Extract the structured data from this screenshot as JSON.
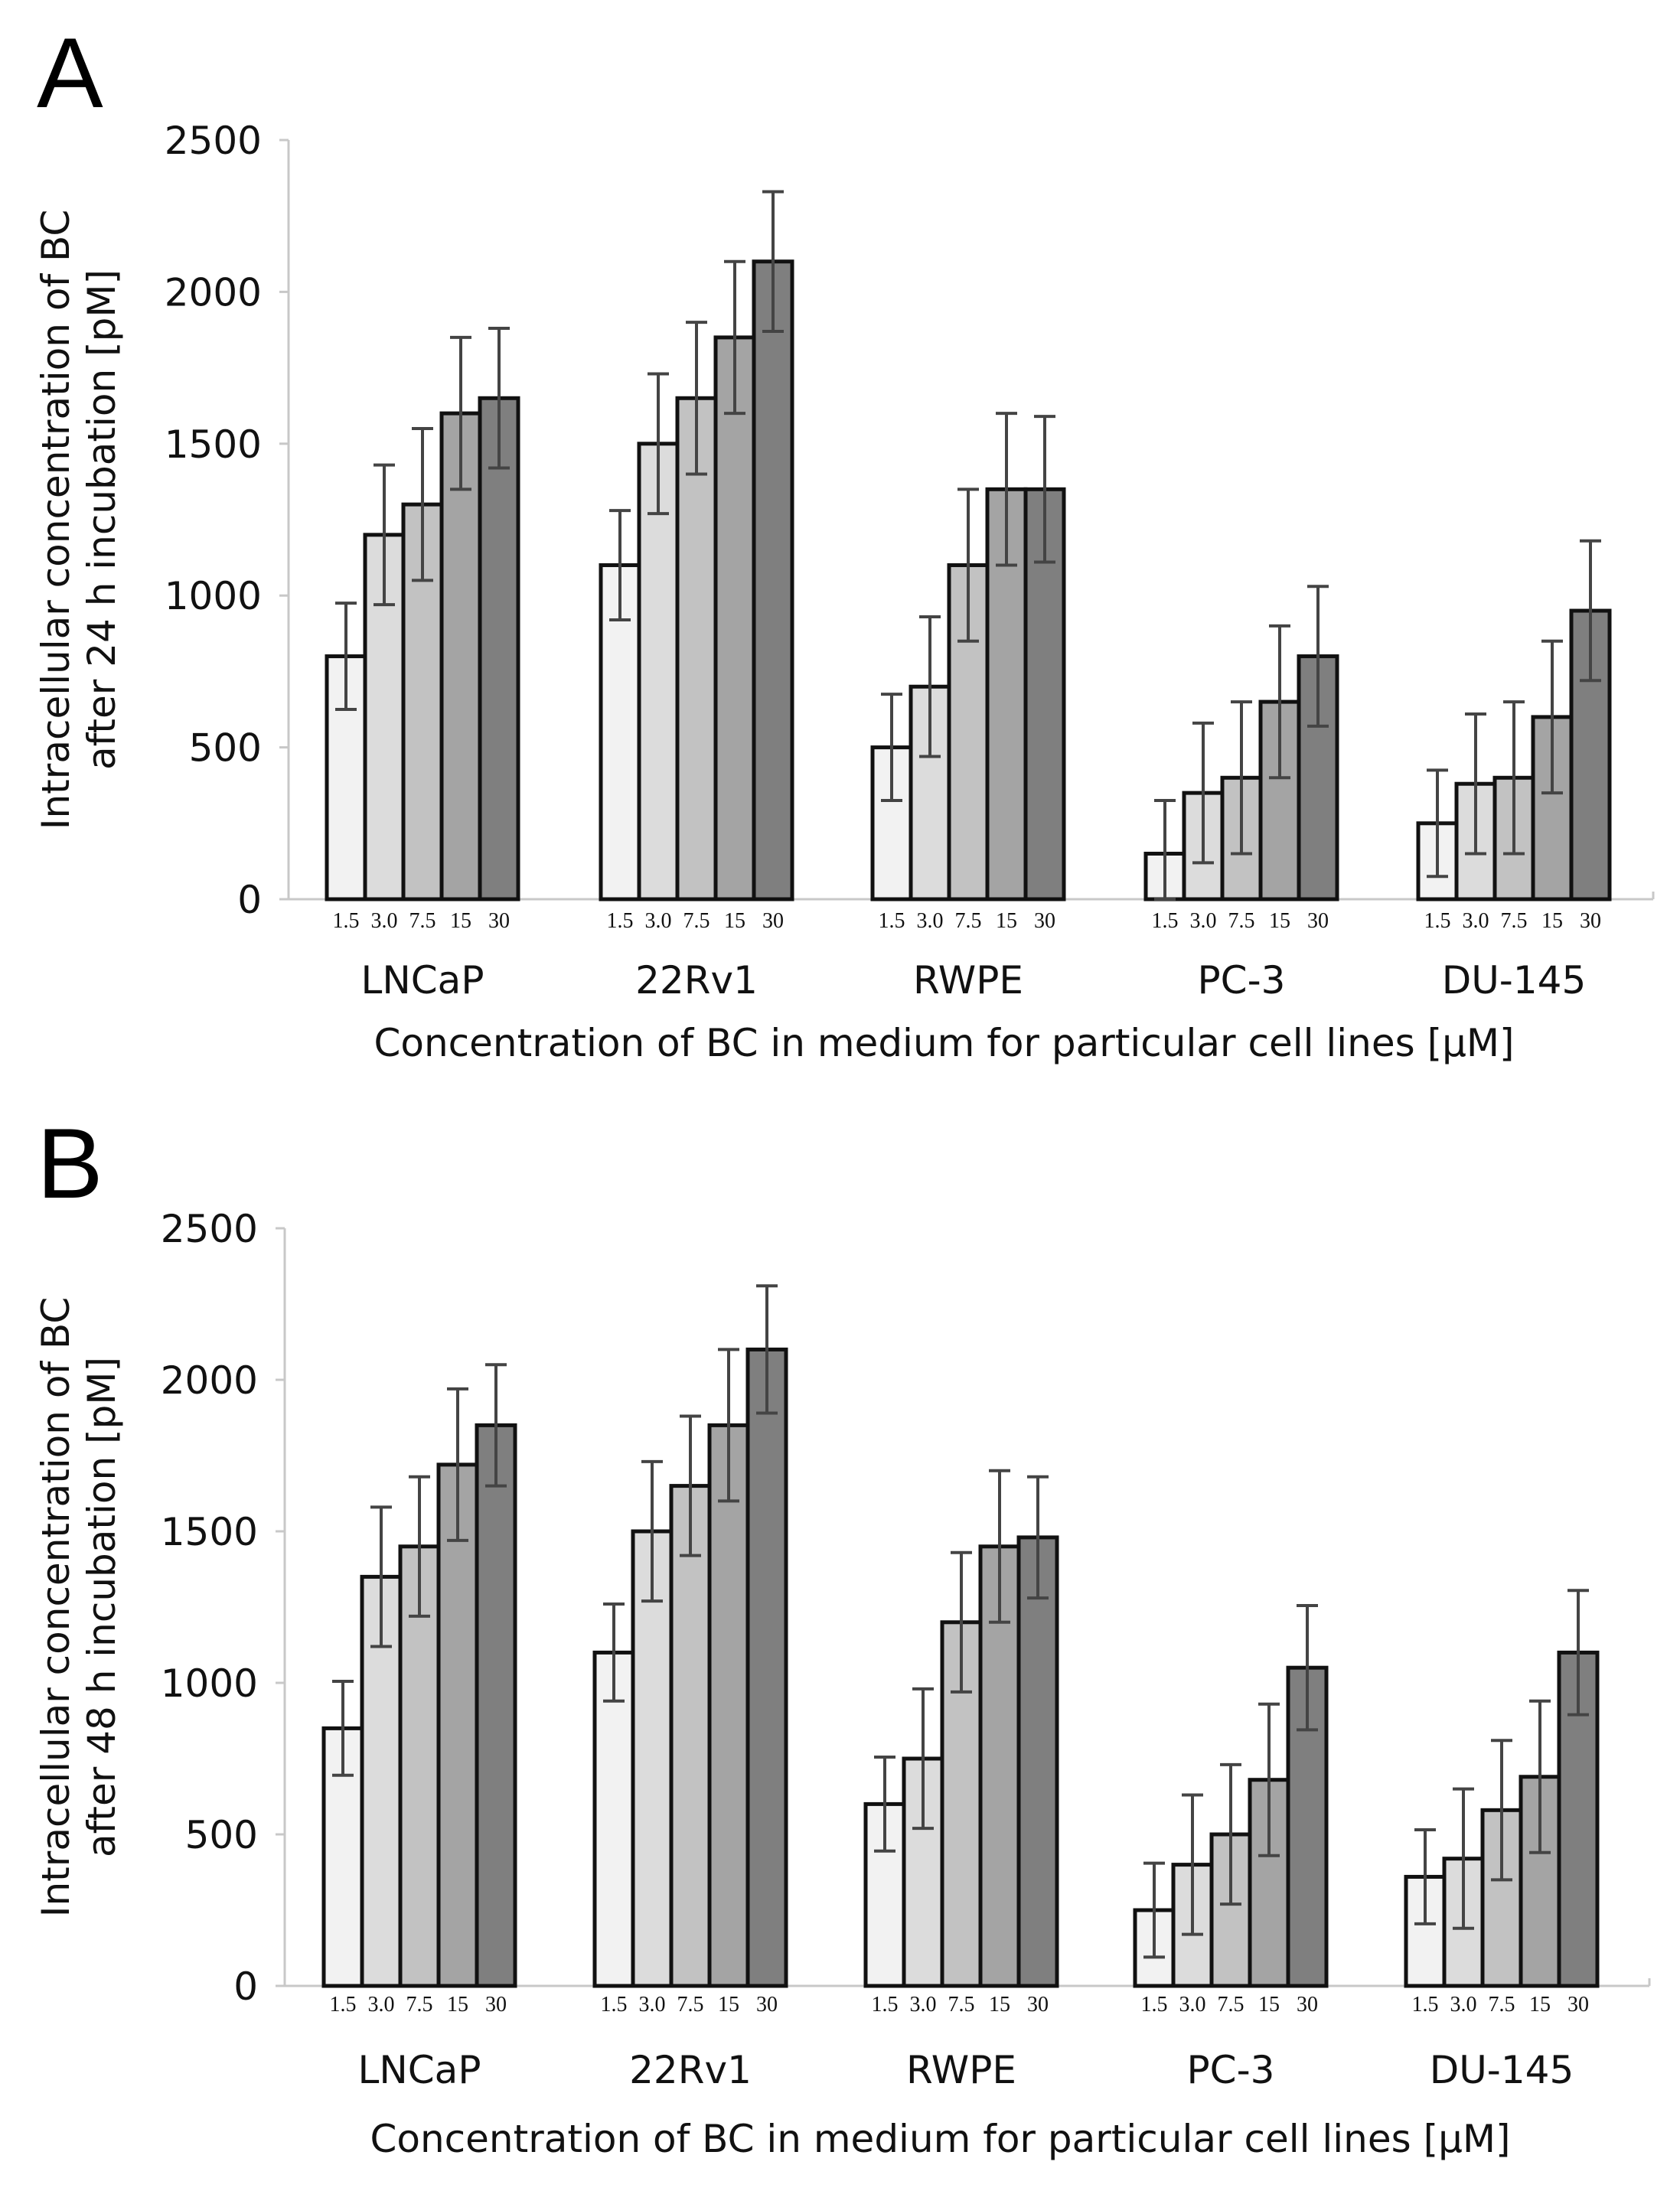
{
  "chart_data": [
    {
      "panel": "A",
      "type": "bar",
      "ylabel_line1": "Intracellular concentration of BC",
      "ylabel_line2": "after 24 h incubation [pM]",
      "xlabel": "Concentration of BC in medium for particular cell lines [µM]",
      "ylim": [
        0,
        2500
      ],
      "yticks": [
        "0",
        "500",
        "1000",
        "1500",
        "2000",
        "2500"
      ],
      "categories": [
        "LNCaP",
        "22Rv1",
        "RWPE",
        "PC-3",
        "DU-145"
      ],
      "concentration_labels": [
        "1.5",
        "3.0",
        "7.5",
        "15",
        "30"
      ],
      "colors": [
        "#f2f2f2",
        "#dcdcdc",
        "#c2c2c2",
        "#a4a4a4",
        "#7f7f7f"
      ],
      "series": [
        {
          "name": "1.5",
          "values": [
            800,
            1100,
            500,
            150,
            250
          ],
          "errors": [
            175,
            180,
            175,
            175,
            175
          ]
        },
        {
          "name": "3.0",
          "values": [
            1200,
            1500,
            700,
            350,
            380
          ],
          "errors": [
            230,
            230,
            230,
            230,
            230
          ]
        },
        {
          "name": "7.5",
          "values": [
            1300,
            1650,
            1100,
            400,
            400
          ],
          "errors": [
            250,
            250,
            250,
            250,
            250
          ]
        },
        {
          "name": "15",
          "values": [
            1600,
            1850,
            1350,
            650,
            600
          ],
          "errors": [
            250,
            250,
            250,
            250,
            250
          ]
        },
        {
          "name": "30",
          "values": [
            1650,
            2100,
            1350,
            800,
            950
          ],
          "errors": [
            230,
            230,
            240,
            230,
            230
          ]
        }
      ]
    },
    {
      "panel": "B",
      "type": "bar",
      "ylabel_line1": "Intracellular concentration of BC",
      "ylabel_line2": "after 48 h incubation [pM]",
      "xlabel": "Concentration of BC in medium for particular cell lines [µM]",
      "ylim": [
        0,
        2500
      ],
      "yticks": [
        "0",
        "500",
        "1000",
        "1500",
        "2000",
        "2500"
      ],
      "categories": [
        "LNCaP",
        "22Rv1",
        "RWPE",
        "PC-3",
        "DU-145"
      ],
      "concentration_labels": [
        "1.5",
        "3.0",
        "7.5",
        "15",
        "30"
      ],
      "colors": [
        "#f2f2f2",
        "#dcdcdc",
        "#c2c2c2",
        "#a4a4a4",
        "#7f7f7f"
      ],
      "series": [
        {
          "name": "1.5",
          "values": [
            850,
            1100,
            600,
            250,
            360
          ],
          "errors": [
            155,
            160,
            155,
            155,
            155
          ]
        },
        {
          "name": "3.0",
          "values": [
            1350,
            1500,
            750,
            400,
            420
          ],
          "errors": [
            230,
            230,
            230,
            230,
            230
          ]
        },
        {
          "name": "7.5",
          "values": [
            1450,
            1650,
            1200,
            500,
            580
          ],
          "errors": [
            230,
            230,
            230,
            230,
            230
          ]
        },
        {
          "name": "15",
          "values": [
            1720,
            1850,
            1450,
            680,
            690
          ],
          "errors": [
            250,
            250,
            250,
            250,
            250
          ]
        },
        {
          "name": "30",
          "values": [
            1850,
            2100,
            1480,
            1050,
            1100
          ],
          "errors": [
            200,
            210,
            200,
            205,
            205
          ]
        }
      ]
    }
  ]
}
